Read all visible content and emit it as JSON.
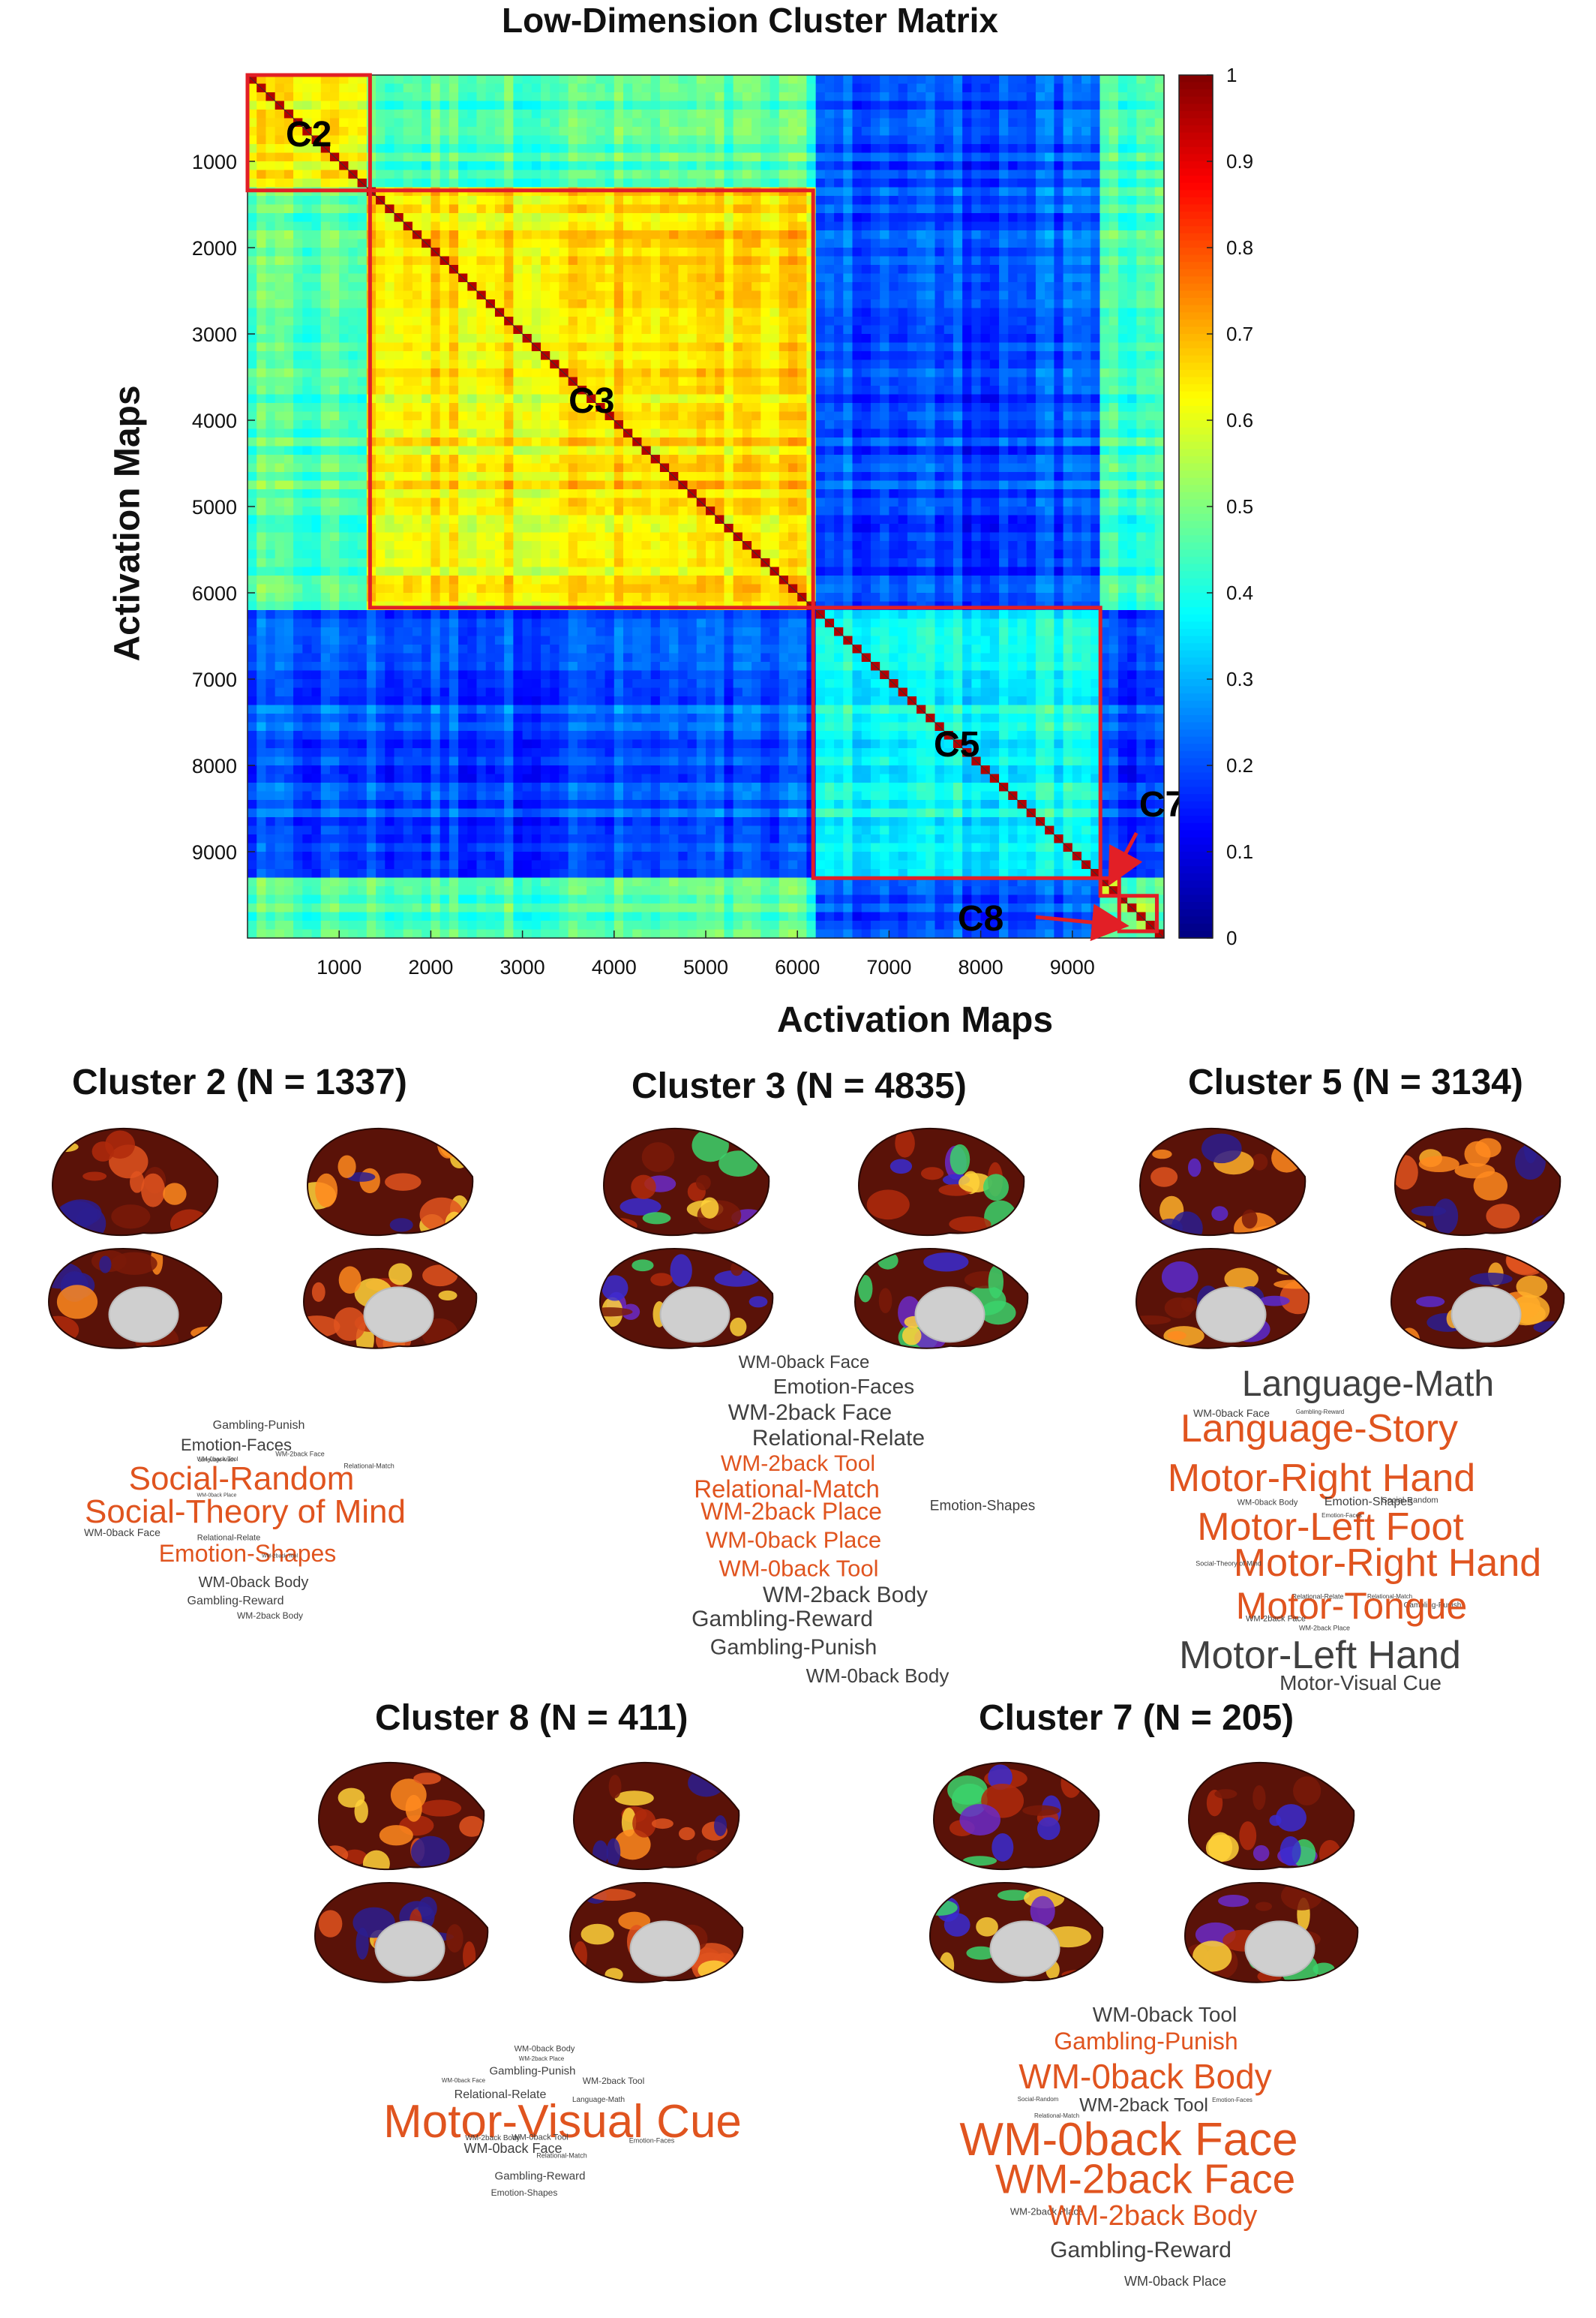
{
  "chart_data": {
    "type": "heatmap",
    "title": "Low-Dimension Cluster Matrix",
    "xlabel": "Activation Maps",
    "ylabel": "Activation Maps",
    "n": 10000,
    "xlim": [
      1,
      10000
    ],
    "ylim": [
      1,
      10000
    ],
    "x_ticks": [
      "1000",
      "2000",
      "3000",
      "4000",
      "5000",
      "6000",
      "7000",
      "8000",
      "9000"
    ],
    "y_ticks": [
      "1000",
      "2000",
      "3000",
      "4000",
      "5000",
      "6000",
      "7000",
      "8000",
      "9000"
    ],
    "colorbar": {
      "range": [
        0,
        1
      ],
      "ticks": [
        "0",
        "0.1",
        "0.2",
        "0.3",
        "0.4",
        "0.5",
        "0.6",
        "0.7",
        "0.8",
        "0.9",
        "1"
      ],
      "colormap": "jet"
    },
    "blocks": [
      {
        "label": "C2",
        "start": 0,
        "end": 1337,
        "within": 0.62
      },
      {
        "label": "C3",
        "start": 1337,
        "end": 6172,
        "within": 0.64
      },
      {
        "label": "C5",
        "start": 6172,
        "end": 9306,
        "within": 0.38
      },
      {
        "label": "C7",
        "start": 9306,
        "end": 9511,
        "within": 0.55
      },
      {
        "label": "C8",
        "start": 9511,
        "end": 9922,
        "within": 0.55
      }
    ],
    "between_high": 0.45,
    "between_low": 0.2,
    "grid": false
  },
  "panels": [
    {
      "title": "Cluster 2 (N = 1337)",
      "cluster": "C2",
      "size": 1337,
      "words": [
        {
          "t": "Gambling-Punish",
          "s": 16,
          "c": "dark"
        },
        {
          "t": "Emotion-Faces",
          "s": 22,
          "c": "dark"
        },
        {
          "t": "WM-0back Tool",
          "s": 8,
          "c": "dark"
        },
        {
          "t": "WM-2back Face",
          "s": 9,
          "c": "dark"
        },
        {
          "t": "Relational-Match",
          "s": 9,
          "c": "dark"
        },
        {
          "t": "Language-Math",
          "s": 7,
          "c": "dark"
        },
        {
          "t": "Social-Random",
          "s": 44,
          "c": "orange"
        },
        {
          "t": "WM-0back Place",
          "s": 7,
          "c": "dark"
        },
        {
          "t": "Social-Theory of Mind",
          "s": 44,
          "c": "orange"
        },
        {
          "t": "WM-0back Face",
          "s": 14,
          "c": "dark"
        },
        {
          "t": "Relational-Relate",
          "s": 11,
          "c": "dark"
        },
        {
          "t": "Emotion-Shapes",
          "s": 32,
          "c": "orange"
        },
        {
          "t": "WM-2back Tool",
          "s": 7,
          "c": "dark"
        },
        {
          "t": "WM-0back Body",
          "s": 20,
          "c": "dark"
        },
        {
          "t": "Gambling-Reward",
          "s": 16,
          "c": "dark"
        },
        {
          "t": "WM-2back Body",
          "s": 12,
          "c": "dark"
        }
      ]
    },
    {
      "title": "Cluster 3 (N = 4835)",
      "cluster": "C3",
      "size": 4835,
      "words": [
        {
          "t": "WM-0back Face",
          "s": 24,
          "c": "dark"
        },
        {
          "t": "Emotion-Faces",
          "s": 28,
          "c": "dark"
        },
        {
          "t": "WM-2back Face",
          "s": 30,
          "c": "dark"
        },
        {
          "t": "Relational-Relate",
          "s": 30,
          "c": "dark"
        },
        {
          "t": "WM-2back Tool",
          "s": 30,
          "c": "orange"
        },
        {
          "t": "Relational-Match",
          "s": 33,
          "c": "orange"
        },
        {
          "t": "WM-2back Place",
          "s": 32,
          "c": "orange"
        },
        {
          "t": "Emotion-Shapes",
          "s": 19,
          "c": "dark"
        },
        {
          "t": "WM-0back Place",
          "s": 31,
          "c": "orange"
        },
        {
          "t": "WM-0back Tool",
          "s": 31,
          "c": "orange"
        },
        {
          "t": "WM-2back Body",
          "s": 30,
          "c": "dark"
        },
        {
          "t": "Gambling-Reward",
          "s": 30,
          "c": "dark"
        },
        {
          "t": "Gambling-Punish",
          "s": 29,
          "c": "dark"
        },
        {
          "t": "WM-0back Body",
          "s": 26,
          "c": "dark"
        }
      ]
    },
    {
      "title": "Cluster 5 (N = 3134)",
      "cluster": "C5",
      "size": 3134,
      "words": [
        {
          "t": "Language-Math",
          "s": 48,
          "c": "dark"
        },
        {
          "t": "WM-0back Face",
          "s": 14,
          "c": "dark"
        },
        {
          "t": "Gambling-Reward",
          "s": 8,
          "c": "dark"
        },
        {
          "t": "Language-Story",
          "s": 52,
          "c": "orange"
        },
        {
          "t": "Motor-Right Hand",
          "s": 52,
          "c": "orange"
        },
        {
          "t": "Motor-Left Foot",
          "s": 52,
          "c": "orange"
        },
        {
          "t": "WM-0back Body",
          "s": 11,
          "c": "dark"
        },
        {
          "t": "Social-Random",
          "s": 11,
          "c": "dark"
        },
        {
          "t": "Emotion-Faces",
          "s": 8,
          "c": "dark"
        },
        {
          "t": "Emotion-Shapes",
          "s": 16,
          "c": "dark"
        },
        {
          "t": "Motor-Right Hand",
          "s": 52,
          "c": "orange"
        },
        {
          "t": "Social-Theory of Mind",
          "s": 9,
          "c": "dark"
        },
        {
          "t": "Relational-Relate",
          "s": 9,
          "c": "dark"
        },
        {
          "t": "Relational-Match",
          "s": 8,
          "c": "dark"
        },
        {
          "t": "Gambling-Punish",
          "s": 10,
          "c": "dark"
        },
        {
          "t": "Motor-Tongue",
          "s": 50,
          "c": "orange"
        },
        {
          "t": "WM-2back Face",
          "s": 11,
          "c": "dark"
        },
        {
          "t": "WM-2back Place",
          "s": 9,
          "c": "dark"
        },
        {
          "t": "Motor-Left Hand",
          "s": 52,
          "c": "dark"
        },
        {
          "t": "Motor-Visual Cue",
          "s": 28,
          "c": "dark"
        }
      ]
    },
    {
      "title": "Cluster 8 (N = 411)",
      "cluster": "C8",
      "size": 411,
      "words": [
        {
          "t": "WM-0back Body",
          "s": 11,
          "c": "dark"
        },
        {
          "t": "WM-2back Place",
          "s": 8,
          "c": "dark"
        },
        {
          "t": "Gambling-Punish",
          "s": 15,
          "c": "dark"
        },
        {
          "t": "WM-0back Face",
          "s": 8,
          "c": "dark"
        },
        {
          "t": "WM-2back Tool",
          "s": 12,
          "c": "dark"
        },
        {
          "t": "Relational-Relate",
          "s": 16,
          "c": "dark"
        },
        {
          "t": "Language-Math",
          "s": 10,
          "c": "dark"
        },
        {
          "t": "Motor-Visual Cue",
          "s": 62,
          "c": "orange"
        },
        {
          "t": "WM-2back Body",
          "s": 10,
          "c": "dark"
        },
        {
          "t": "WM-0back Tool",
          "s": 11,
          "c": "dark"
        },
        {
          "t": "Emotion-Faces",
          "s": 9,
          "c": "dark"
        },
        {
          "t": "WM-0back Face",
          "s": 18,
          "c": "dark"
        },
        {
          "t": "Relational-Match",
          "s": 9,
          "c": "dark"
        },
        {
          "t": "Gambling-Reward",
          "s": 15,
          "c": "dark"
        },
        {
          "t": "Emotion-Shapes",
          "s": 12,
          "c": "dark"
        }
      ]
    },
    {
      "title": "Cluster 7 (N = 205)",
      "cluster": "C7",
      "size": 205,
      "words": [
        {
          "t": "WM-0back Tool",
          "s": 28,
          "c": "dark"
        },
        {
          "t": "Gambling-Punish",
          "s": 32,
          "c": "orange"
        },
        {
          "t": "WM-0back Body",
          "s": 46,
          "c": "orange"
        },
        {
          "t": "Social-Random",
          "s": 8,
          "c": "dark"
        },
        {
          "t": "WM-2back Tool",
          "s": 25,
          "c": "dark"
        },
        {
          "t": "Emotion-Faces",
          "s": 8,
          "c": "dark"
        },
        {
          "t": "Relational-Match",
          "s": 8,
          "c": "dark"
        },
        {
          "t": "WM-0back Face",
          "s": 62,
          "c": "orange"
        },
        {
          "t": "WM-2back Face",
          "s": 55,
          "c": "orange"
        },
        {
          "t": "WM-2back Place",
          "s": 13,
          "c": "dark"
        },
        {
          "t": "WM-2back Body",
          "s": 38,
          "c": "orange"
        },
        {
          "t": "Gambling-Reward",
          "s": 30,
          "c": "dark"
        },
        {
          "t": "WM-0back Place",
          "s": 18,
          "c": "dark"
        }
      ]
    }
  ],
  "colors": {
    "orange": "#e0541f",
    "dark": "#404040",
    "box": "#e21f26",
    "title": "#000000"
  }
}
